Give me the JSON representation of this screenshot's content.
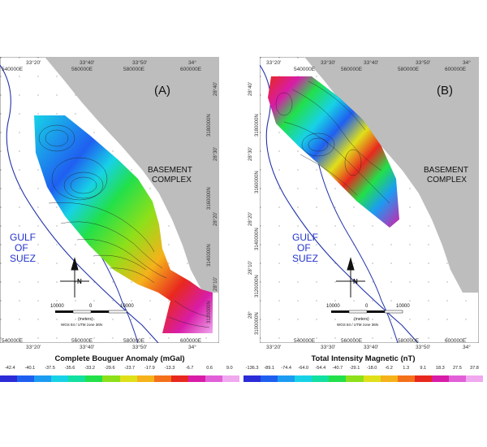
{
  "map_a": {
    "panel_label": "(A)",
    "top_lon_labels": [
      "33°20'",
      "33°40'",
      "33°50'",
      "34°"
    ],
    "top_utm_labels": [
      "540000E",
      "560000E",
      "580000E",
      "600000E"
    ],
    "bottom_utm_labels": [
      "540000E",
      "560000E",
      "580000E",
      "600000E"
    ],
    "bottom_lon_labels": [
      "33°20'",
      "33°40'",
      "33°50'",
      "34°"
    ],
    "right_lat_labels": [
      "28°40'",
      "28°30'",
      "28°20'",
      "28°10'"
    ],
    "right_utm_labels": [
      "3180000N",
      "3160000N",
      "3140000N",
      "3120000N"
    ],
    "basement_label_line1": "BASEMENT",
    "basement_label_line2": "COMPLEX",
    "gulf_line1": "GULF",
    "gulf_line2": "OF",
    "gulf_line3": "SUEZ",
    "north_letter": "N",
    "scale_left": "10000",
    "scale_mid": "0",
    "scale_right": "10000",
    "scale_units": "(meters)",
    "projection": "WGS 84 / UTM zone 36N"
  },
  "map_b": {
    "panel_label": "(B)",
    "top_lon_labels": [
      "33°20'",
      "33°30'",
      "33°40'",
      "33°50'",
      "34°"
    ],
    "top_utm_labels": [
      "540000E",
      "560000E",
      "580000E",
      "600000E"
    ],
    "bottom_utm_labels": [
      "540000E",
      "560000E",
      "580000E",
      "600000E"
    ],
    "bottom_lon_labels": [
      "33°20'",
      "33°30'",
      "33°40'",
      "33°50'",
      "34°"
    ],
    "left_lat_labels": [
      "28°40'",
      "28°30'",
      "28°20'",
      "28°10'",
      "28°"
    ],
    "left_utm_labels": [
      "3180000N",
      "3160000N",
      "3140000N",
      "3120000N",
      "3100000N"
    ],
    "basement_label_line1": "BASEMENT",
    "basement_label_line2": "COMPLEX",
    "gulf_line1": "GULF",
    "gulf_line2": "OF",
    "gulf_line3": "SUEZ",
    "north_letter": "N",
    "scale_left": "10000",
    "scale_mid": "0",
    "scale_right": "10000",
    "scale_units": "(meters)",
    "projection": "WGS 84 / UTM zone 36N"
  },
  "legend_a": {
    "title": "Complete Bouguer Anomaly (mGal)",
    "ticks": [
      "-42.4",
      "-40.1",
      "-37.5",
      "-35.6",
      "-33.2",
      "-29.6",
      "-23.7",
      "-17.9",
      "-13.3",
      "-6.7",
      "0.6",
      "9.0"
    ],
    "colors": [
      "#2b2bd8",
      "#1f5ff0",
      "#1b9cf2",
      "#17d2e6",
      "#12e0a0",
      "#22e04a",
      "#8de01a",
      "#e0e01a",
      "#f5b21a",
      "#f5701a",
      "#e8281e",
      "#d81ca8",
      "#e25fd8",
      "#f0a8ee"
    ]
  },
  "legend_b": {
    "title": "Total Intensity Magnetic (nT)",
    "ticks": [
      "-136.3",
      "-89.1",
      "-74.4",
      "-64.0",
      "-54.4",
      "-40.7",
      "-29.1",
      "-18.0",
      "-6.2",
      "1.3",
      "9.1",
      "18.3",
      "27.5",
      "37.8"
    ],
    "colors": [
      "#2b2bd8",
      "#1f5ff0",
      "#1b9cf2",
      "#17d2e6",
      "#12e0a0",
      "#22e04a",
      "#8de01a",
      "#e0e01a",
      "#f5b21a",
      "#f5701a",
      "#e8281e",
      "#d81ca8",
      "#e25fd8",
      "#f0a8ee"
    ]
  }
}
